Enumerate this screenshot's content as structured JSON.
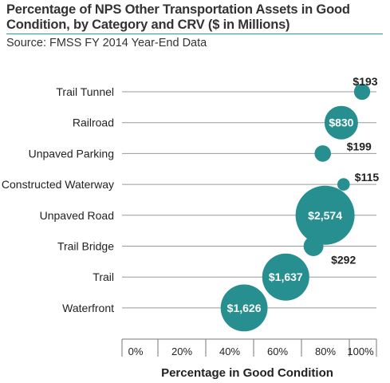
{
  "chart_data": {
    "type": "scatter",
    "title": "Percentage of NPS Other Transportation Assets in Good Condition, by Category and CRV ($ in Millions)",
    "subtitle": "Source: FMSS FY 2014 Year-End Data",
    "xlabel": "Percentage in Good Condition",
    "xlim": [
      0,
      100
    ],
    "x_ticks": [
      "0%",
      "20%",
      "40%",
      "60%",
      "80%",
      "100%"
    ],
    "bubble_color": "#278f8f",
    "points": [
      {
        "category": "Trail Tunnel",
        "x": 100,
        "crv": 193,
        "label": "$193"
      },
      {
        "category": "Railroad",
        "x": 91,
        "crv": 830,
        "label": "$830"
      },
      {
        "category": "Unpaved Parking",
        "x": 83,
        "crv": 199,
        "label": "$199"
      },
      {
        "category": "Constructed Waterway",
        "x": 92,
        "crv": 115,
        "label": "$115"
      },
      {
        "category": "Unpaved Road",
        "x": 84,
        "crv": 2574,
        "label": "$2,574"
      },
      {
        "category": "Trail Bridge",
        "x": 79,
        "crv": 292,
        "label": "$292"
      },
      {
        "category": "Trail",
        "x": 67,
        "crv": 1637,
        "label": "$1,637"
      },
      {
        "category": "Waterfront",
        "x": 49,
        "crv": 1626,
        "label": "$1,626"
      }
    ]
  }
}
